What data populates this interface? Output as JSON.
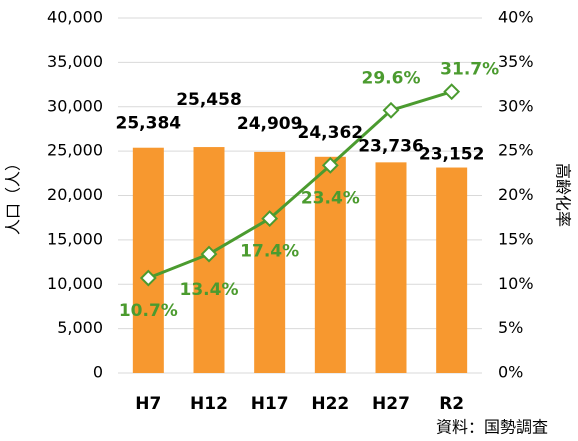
{
  "chart_data": {
    "type": "bar",
    "categories": [
      "H7",
      "H12",
      "H17",
      "H22",
      "H27",
      "R2"
    ],
    "series": [
      {
        "name": "人口",
        "type": "bar",
        "color": "#f7982f",
        "values": [
          25384,
          25458,
          24909,
          24362,
          23736,
          23152
        ],
        "value_labels": [
          "25,384",
          "25,458",
          "24,909",
          "24,362",
          "23,736",
          "23,152"
        ]
      },
      {
        "name": "高齢化率",
        "type": "line",
        "axis": "y2",
        "color": "#4b9b2f",
        "values": [
          10.7,
          13.4,
          17.4,
          23.4,
          29.6,
          31.7
        ],
        "value_labels": [
          "10.7%",
          "13.4%",
          "17.4%",
          "23.4%",
          "29.6%",
          "31.7%"
        ]
      }
    ],
    "ylabel": "人口（人）",
    "y2label": "高齢化率",
    "ylim": [
      0,
      40000
    ],
    "yticks": [
      0,
      {
        "value": 5000,
        "label": "5,000"
      },
      {
        "value": 10000,
        "label": "10,000"
      },
      {
        "value": 15000,
        "label": "15,000"
      },
      {
        "value": 20000,
        "label": "20,000"
      },
      {
        "value": 25000,
        "label": "25,000"
      },
      {
        "value": 30000,
        "label": "30,000"
      },
      {
        "value": 35000,
        "label": "35,000"
      },
      {
        "value": 40000,
        "label": "40,000"
      }
    ],
    "y2lim": [
      0,
      40
    ],
    "y2ticks": [
      {
        "value": 0,
        "label": "0%"
      },
      {
        "value": 5,
        "label": "5%"
      },
      {
        "value": 10,
        "label": "10%"
      },
      {
        "value": 15,
        "label": "15%"
      },
      {
        "value": 20,
        "label": "20%"
      },
      {
        "value": 25,
        "label": "25%"
      },
      {
        "value": 30,
        "label": "30%"
      },
      {
        "value": 35,
        "label": "35%"
      },
      {
        "value": 40,
        "label": "40%"
      }
    ],
    "grid": true,
    "source": "資料：国勢調査"
  }
}
